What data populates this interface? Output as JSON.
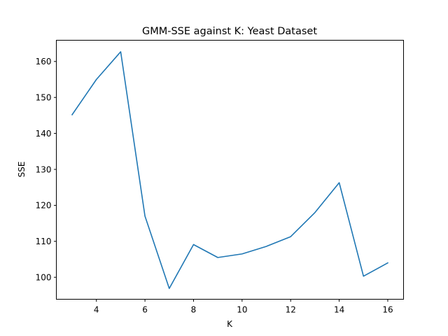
{
  "chart_data": {
    "type": "line",
    "title": "GMM-SSE against K: Yeast Dataset",
    "xlabel": "K",
    "ylabel": "SSE",
    "xlim": [
      2.35,
      16.65
    ],
    "ylim": [
      93.9,
      165.9
    ],
    "xticks": [
      4,
      6,
      8,
      10,
      12,
      14,
      16
    ],
    "yticks": [
      100,
      110,
      120,
      130,
      140,
      150,
      160
    ],
    "grid": false,
    "colors": {
      "line": "#1f77b4"
    },
    "series": [
      {
        "x": [
          3,
          4,
          5,
          6,
          7,
          8,
          9,
          10,
          11,
          12,
          13,
          14,
          15,
          16
        ],
        "y": [
          145.2,
          155.0,
          162.7,
          117.0,
          96.9,
          109.1,
          105.5,
          106.5,
          108.6,
          111.3,
          118.0,
          126.3,
          100.3,
          104.0
        ]
      }
    ]
  }
}
